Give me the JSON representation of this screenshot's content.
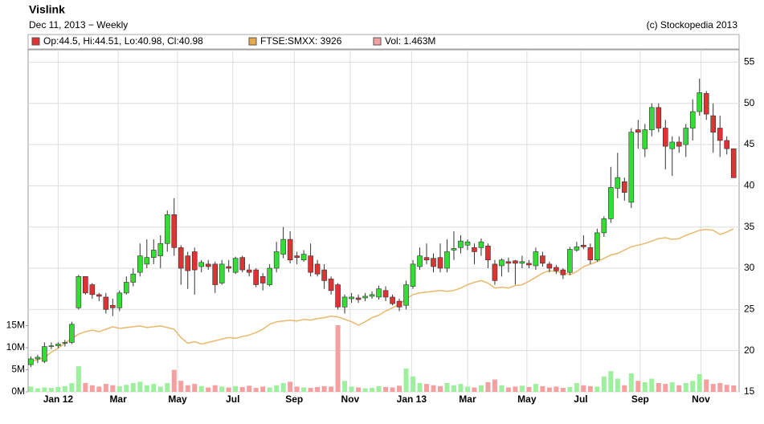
{
  "chart_data": {
    "type": "candlestick",
    "title": "Vislink",
    "subtitle": "Dec 11, 2013 − Weekly",
    "credit": "(c) Stockopedia 2013",
    "legend": [
      {
        "name": "Op:44.5, Hi:44.51, Lo:40.98, Cl:40.98",
        "color": "#dd3333"
      },
      {
        "name": "FTSE:SMXX: 3926",
        "color": "#e8a850"
      },
      {
        "name": "Vol: 1.463M",
        "color": "#f4a0a0"
      }
    ],
    "up_color": "#33dd33",
    "down_color": "#dd3333",
    "candles": [
      [
        18.3,
        19.3,
        18,
        19
      ],
      [
        19,
        19.5,
        18.5,
        19.2
      ],
      [
        18.7,
        21,
        18.5,
        20.5
      ],
      [
        20.5,
        21,
        20.2,
        20.6
      ],
      [
        20.6,
        21,
        20.3,
        20.8
      ],
      [
        20.9,
        21.3,
        20.5,
        21.0
      ],
      [
        21,
        23.5,
        20.8,
        23.2
      ],
      [
        25.2,
        29.2,
        25,
        29
      ],
      [
        29,
        29,
        26.8,
        27
      ],
      [
        28,
        28.2,
        26.3,
        26.8
      ],
      [
        26.8,
        27,
        26,
        26.6
      ],
      [
        26.5,
        27,
        24.5,
        25
      ],
      [
        25.5,
        26.3,
        24.2,
        25.2
      ],
      [
        25.2,
        27.3,
        24.8,
        27
      ],
      [
        27,
        29,
        26.8,
        28.3
      ],
      [
        28.3,
        30,
        27.8,
        29.3
      ],
      [
        29.5,
        33,
        29,
        31.5
      ],
      [
        30.5,
        33.5,
        30,
        31.3
      ],
      [
        31.3,
        33.5,
        30.5,
        32.2
      ],
      [
        31.5,
        34,
        30,
        33
      ],
      [
        33,
        37,
        32,
        36.5
      ],
      [
        36.5,
        38.5,
        31.5,
        32.5
      ],
      [
        32.5,
        32.8,
        28,
        30
      ],
      [
        31.5,
        32,
        27.5,
        29.7
      ],
      [
        32,
        32.5,
        26.8,
        29.8
      ],
      [
        30.2,
        31,
        29.5,
        30.7
      ],
      [
        30.5,
        31,
        29.8,
        30.2
      ],
      [
        30.5,
        30.8,
        27,
        28
      ],
      [
        28.2,
        31,
        28,
        30.5
      ],
      [
        30.2,
        31,
        29.5,
        30
      ],
      [
        29.5,
        31.4,
        29.3,
        31.2
      ],
      [
        31.3,
        31.5,
        29.5,
        29.8
      ],
      [
        29.8,
        30.5,
        29,
        29.5
      ],
      [
        29.8,
        30,
        27.7,
        28
      ],
      [
        29,
        29.4,
        27.3,
        28.2
      ],
      [
        28,
        30.5,
        27.8,
        30
      ],
      [
        30,
        33.2,
        29.5,
        32
      ],
      [
        31.7,
        35,
        31.2,
        33.5
      ],
      [
        33.5,
        34.5,
        30.6,
        31
      ],
      [
        31.5,
        32,
        30.5,
        31.3
      ],
      [
        31,
        32.2,
        30.8,
        31.7
      ],
      [
        31.5,
        33,
        29,
        29.5
      ],
      [
        30.5,
        31,
        29,
        29.3
      ],
      [
        29.8,
        30.5,
        27.5,
        28.5
      ],
      [
        28.7,
        29,
        26.8,
        27.3
      ],
      [
        28,
        28.2,
        25,
        25.3
      ],
      [
        25.3,
        26.8,
        24.5,
        26.5
      ],
      [
        26.3,
        27,
        25.8,
        26.5
      ],
      [
        26.4,
        26.8,
        25.8,
        26.2
      ],
      [
        26.4,
        27,
        26,
        26.6
      ],
      [
        26.6,
        27.2,
        26.3,
        26.8
      ],
      [
        26.5,
        27.9,
        26.2,
        27.5
      ],
      [
        27.3,
        27.8,
        26,
        26.5
      ],
      [
        26.5,
        26.8,
        25.5,
        25.7
      ],
      [
        26,
        26.3,
        24.8,
        25.3
      ],
      [
        25.5,
        28.5,
        25,
        28
      ],
      [
        27.8,
        31,
        27.5,
        30.5
      ],
      [
        30.2,
        32.5,
        29.8,
        31.5
      ],
      [
        31.3,
        33,
        30.5,
        31
      ],
      [
        31.2,
        31.8,
        29.5,
        30.2
      ],
      [
        31.3,
        33,
        29.5,
        30
      ],
      [
        30,
        33.5,
        29.5,
        32
      ],
      [
        32.2,
        34.5,
        31,
        32.4
      ],
      [
        32.5,
        34,
        31.8,
        33.3
      ],
      [
        32.8,
        33.5,
        32.2,
        33.2
      ],
      [
        32.5,
        33,
        30.5,
        32
      ],
      [
        32.5,
        33.6,
        31.5,
        33.2
      ],
      [
        32.7,
        33,
        30,
        31
      ],
      [
        30.5,
        31,
        28,
        28.5
      ],
      [
        30.3,
        31.2,
        29,
        31
      ],
      [
        30.8,
        31.3,
        29.5,
        30.6
      ],
      [
        30.9,
        31,
        28,
        30.6
      ],
      [
        30.6,
        31.5,
        30,
        30.8
      ],
      [
        30.6,
        31,
        30,
        30.4
      ],
      [
        30.3,
        32.5,
        29.8,
        32
      ],
      [
        31.5,
        32,
        30.2,
        30.6
      ],
      [
        30.5,
        30.8,
        29.5,
        30
      ],
      [
        30.1,
        30.4,
        29.3,
        29.7
      ],
      [
        29.8,
        30,
        28.7,
        29.2
      ],
      [
        29.5,
        32.6,
        29.2,
        32.3
      ],
      [
        32.2,
        33.2,
        32,
        32.6
      ],
      [
        32.8,
        34,
        32.3,
        32.6
      ],
      [
        32.5,
        33,
        30.5,
        31
      ],
      [
        31,
        34.8,
        30.8,
        34.3
      ],
      [
        34.3,
        36.3,
        33.8,
        36
      ],
      [
        36,
        42.3,
        35.5,
        39.8
      ],
      [
        39.7,
        44,
        38.5,
        41
      ],
      [
        40.5,
        41,
        38.2,
        39.2
      ],
      [
        38,
        47,
        37.3,
        46.5
      ],
      [
        46.8,
        48,
        44.5,
        46.5
      ],
      [
        44.5,
        47.5,
        43.5,
        46.8
      ],
      [
        46.8,
        50,
        46,
        49.5
      ],
      [
        49.5,
        50,
        46.5,
        47
      ],
      [
        47,
        48,
        42,
        44.8
      ],
      [
        44.5,
        46,
        41.2,
        45.3
      ],
      [
        45.3,
        46,
        44,
        44.8
      ],
      [
        45,
        47.5,
        43.5,
        47
      ],
      [
        47,
        50.5,
        45.5,
        49
      ],
      [
        49,
        53,
        48.5,
        51.3
      ],
      [
        51.2,
        51.5,
        48,
        48.7
      ],
      [
        48.5,
        50,
        44,
        46.5
      ],
      [
        47,
        48.5,
        43.5,
        45.5
      ],
      [
        45.5,
        46,
        43.8,
        44.5
      ],
      [
        44.5,
        44.51,
        40.98,
        40.98
      ]
    ],
    "volume": {
      "axis": "y2",
      "values": [
        1.2,
        0.8,
        1.0,
        0.9,
        1.1,
        1.3,
        2.0,
        5.8,
        2.0,
        1.5,
        1.2,
        1.8,
        1.5,
        1.3,
        1.6,
        2.0,
        2.3,
        1.5,
        1.8,
        1.2,
        2.0,
        5.0,
        2.5,
        1.5,
        1.8,
        1.3,
        1.0,
        1.5,
        1.2,
        1.0,
        1.3,
        1.1,
        1.4,
        0.9,
        1.2,
        1.0,
        1.5,
        2.0,
        2.3,
        1.2,
        1.0,
        0.9,
        1.1,
        1.3,
        1.2,
        15.1,
        2.5,
        1.2,
        1.0,
        0.8,
        0.9,
        1.3,
        1.1,
        1.0,
        1.4,
        5.3,
        3.5,
        2.0,
        1.8,
        1.5,
        1.3,
        2.0,
        1.5,
        1.8,
        1.2,
        1.0,
        1.5,
        2.2,
        2.8,
        1.5,
        1.0,
        1.2,
        1.4,
        1.1,
        1.8,
        1.3,
        1.0,
        1.2,
        0.9,
        1.1,
        2.0,
        1.5,
        1.3,
        1.2,
        3.5,
        4.7,
        3.0,
        1.5,
        4.2,
        2.5,
        2.2,
        3.0,
        2.0,
        1.8,
        2.2,
        1.5,
        2.0,
        2.5,
        4.0,
        2.8,
        1.8,
        2.0,
        1.6,
        1.463
      ],
      "up_color": "#9ef09e",
      "down_color": "#f4a0a0"
    },
    "ftse": {
      "color": "#e8b86d",
      "values": [
        18.7,
        18.9,
        19.2,
        19.8,
        20.3,
        20.9,
        21.5,
        22.0,
        22.3,
        22.5,
        22.3,
        22.6,
        22.9,
        22.7,
        22.8,
        22.9,
        23.0,
        22.8,
        22.9,
        23.0,
        22.8,
        22.6,
        21.6,
        20.9,
        21.1,
        20.8,
        21.0,
        21.2,
        21.4,
        21.6,
        21.5,
        21.7,
        21.9,
        22.2,
        22.6,
        23.2,
        23.5,
        23.6,
        23.7,
        23.6,
        23.8,
        23.7,
        23.9,
        24.0,
        24.2,
        24.1,
        23.8,
        23.5,
        23.1,
        23.5,
        24.0,
        24.3,
        24.8,
        25.2,
        25.6,
        26.3,
        26.8,
        27.0,
        27.1,
        27.2,
        27.3,
        27.2,
        27.3,
        27.6,
        28.0,
        28.3,
        28.5,
        28.2,
        27.6,
        27.7,
        27.6,
        27.9,
        28.0,
        28.4,
        28.9,
        29.4,
        29.7,
        29.6,
        29.5,
        29.2,
        29.6,
        30.2,
        30.5,
        30.8,
        31.2,
        31.6,
        31.8,
        32.2,
        32.6,
        32.8,
        33.0,
        33.3,
        33.6,
        33.7,
        33.5,
        33.6,
        34.0,
        34.3,
        34.6,
        34.7,
        34.6,
        34.1,
        34.4,
        34.8
      ]
    },
    "xlim": [
      -0.4,
      103.8
    ],
    "xticks": [
      {
        "value": 4,
        "label": "Jan 12"
      },
      {
        "value": 12.8,
        "label": "Mar"
      },
      {
        "value": 21.5,
        "label": "May"
      },
      {
        "value": 29.6,
        "label": "Jul"
      },
      {
        "value": 38.6,
        "label": "Sep"
      },
      {
        "value": 46.8,
        "label": "Nov"
      },
      {
        "value": 55.8,
        "label": "Jan 13"
      },
      {
        "value": 64,
        "label": "Mar"
      },
      {
        "value": 72.7,
        "label": "May"
      },
      {
        "value": 80.6,
        "label": "Jul"
      },
      {
        "value": 89.3,
        "label": "Sep"
      },
      {
        "value": 98.2,
        "label": "Nov"
      }
    ],
    "ylim": [
      15,
      56.5
    ],
    "yticks": [
      15,
      20,
      25,
      30,
      35,
      40,
      45,
      50,
      55
    ],
    "y2lim": [
      0,
      77.5
    ],
    "y2ticks": [
      {
        "value": 0,
        "label": "0M"
      },
      {
        "value": 5,
        "label": "5M"
      },
      {
        "value": 10,
        "label": "10M"
      },
      {
        "value": 15,
        "label": "15M"
      }
    ],
    "grid": true
  }
}
